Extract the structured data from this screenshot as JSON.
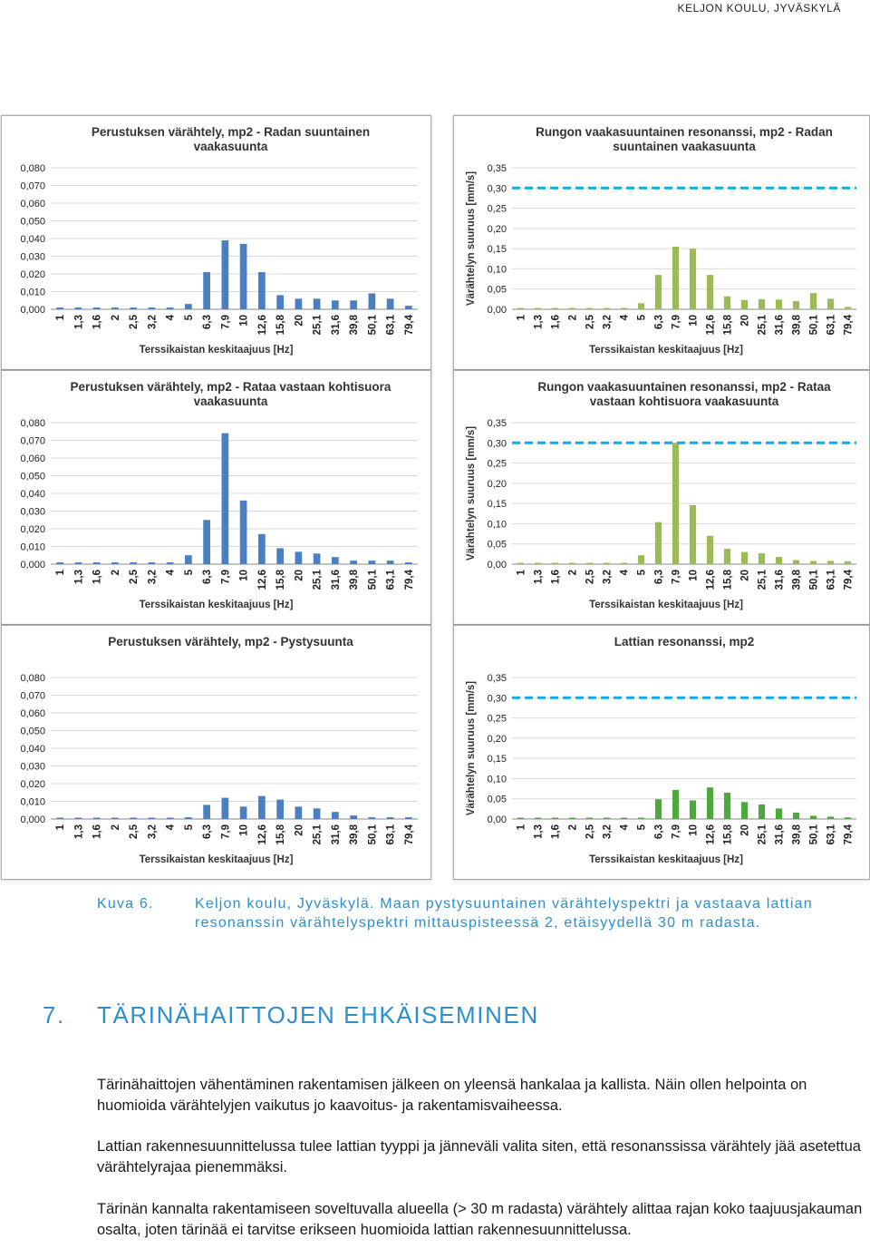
{
  "header": {
    "text": "KELJON KOULU, JYVÄSKYLÄ"
  },
  "charts": [
    {
      "title": [
        "Perustuksen värähtely, mp2 - Radan suuntainen",
        "vaakasuunta"
      ],
      "xlabel": "Terssikaistan keskitaajuus [Hz]",
      "ylabel": "",
      "yticks": [
        "0,080",
        "0,070",
        "0,060",
        "0,050",
        "0,040",
        "0,030",
        "0,020",
        "0,010",
        "0,000"
      ],
      "ymax": 0.08,
      "bar_color": "#4a7fc1",
      "categories": [
        "1",
        "1,3",
        "1,6",
        "2",
        "2,5",
        "3,2",
        "4",
        "5",
        "6,3",
        "7,9",
        "10",
        "12,6",
        "15,8",
        "20",
        "25,1",
        "31,6",
        "39,8",
        "50,1",
        "63,1",
        "79,4"
      ],
      "values": [
        0.001,
        0.001,
        0.001,
        0.001,
        0.001,
        0.001,
        0.001,
        0.003,
        0.021,
        0.039,
        0.037,
        0.021,
        0.008,
        0.006,
        0.006,
        0.005,
        0.005,
        0.009,
        0.006,
        0.002
      ],
      "limit": null
    },
    {
      "title": [
        "Rungon vaakasuuntainen resonanssi, mp2 - Radan",
        "suuntainen vaakasuunta"
      ],
      "xlabel": "Terssikaistan keskitaajuus [Hz]",
      "ylabel": "Värähtelyn suuruus [mm/s]",
      "yticks": [
        "0,35",
        "0,30",
        "0,25",
        "0,20",
        "0,15",
        "0,10",
        "0,05",
        "0,00"
      ],
      "ymax": 0.35,
      "bar_color": "#9bbb59",
      "categories": [
        "1",
        "1,3",
        "1,6",
        "2",
        "2,5",
        "3,2",
        "4",
        "5",
        "6,3",
        "7,9",
        "10",
        "12,6",
        "15,8",
        "20",
        "25,1",
        "31,6",
        "39,8",
        "50,1",
        "63,1",
        "79,4"
      ],
      "values": [
        0.002,
        0.002,
        0.002,
        0.002,
        0.002,
        0.002,
        0.003,
        0.015,
        0.085,
        0.155,
        0.15,
        0.085,
        0.032,
        0.023,
        0.025,
        0.024,
        0.02,
        0.04,
        0.026,
        0.006
      ],
      "limit": 0.3,
      "limit_color": "#00b0f0"
    },
    {
      "title": [
        "Perustuksen värähtely, mp2 - Rataa vastaan kohtisuora",
        "vaakasuunta"
      ],
      "xlabel": "Terssikaistan keskitaajuus [Hz]",
      "ylabel": "",
      "yticks": [
        "0,080",
        "0,070",
        "0,060",
        "0,050",
        "0,040",
        "0,030",
        "0,020",
        "0,010",
        "0,000"
      ],
      "ymax": 0.08,
      "bar_color": "#4a7fc1",
      "categories": [
        "1",
        "1,3",
        "1,6",
        "2",
        "2,5",
        "3,2",
        "4",
        "5",
        "6,3",
        "7,9",
        "10",
        "12,6",
        "15,8",
        "20",
        "25,1",
        "31,6",
        "39,8",
        "50,1",
        "63,1",
        "79,4"
      ],
      "values": [
        0.001,
        0.001,
        0.001,
        0.001,
        0.001,
        0.001,
        0.001,
        0.005,
        0.025,
        0.074,
        0.036,
        0.017,
        0.009,
        0.007,
        0.006,
        0.004,
        0.002,
        0.002,
        0.002,
        0.001
      ],
      "limit": null
    },
    {
      "title": [
        "Rungon vaakasuuntainen resonanssi, mp2 - Rataa",
        "vastaan kohtisuora vaakasuunta"
      ],
      "xlabel": "Terssikaistan keskitaajuus [Hz]",
      "ylabel": "Värähtelyn suuruus [mm/s]",
      "yticks": [
        "0,35",
        "0,30",
        "0,25",
        "0,20",
        "0,15",
        "0,10",
        "0,05",
        "0,00"
      ],
      "ymax": 0.35,
      "bar_color": "#9bbb59",
      "categories": [
        "1",
        "1,3",
        "1,6",
        "2",
        "2,5",
        "3,2",
        "4",
        "5",
        "6,3",
        "7,9",
        "10",
        "12,6",
        "15,8",
        "20",
        "25,1",
        "31,6",
        "39,8",
        "50,1",
        "63,1",
        "79,4"
      ],
      "values": [
        0.002,
        0.002,
        0.002,
        0.002,
        0.002,
        0.002,
        0.002,
        0.022,
        0.104,
        0.3,
        0.146,
        0.07,
        0.038,
        0.03,
        0.027,
        0.018,
        0.01,
        0.008,
        0.008,
        0.007
      ],
      "limit": 0.3,
      "limit_color": "#00b0f0"
    },
    {
      "title": [
        "Perustuksen värähtely, mp2 - Pystysuunta"
      ],
      "xlabel": "Terssikaistan keskitaajuus [Hz]",
      "ylabel": "",
      "yticks": [
        "0,080",
        "0,070",
        "0,060",
        "0,050",
        "0,040",
        "0,030",
        "0,020",
        "0,010",
        "0,000"
      ],
      "ymax": 0.08,
      "bar_color": "#4a7fc1",
      "categories": [
        "1",
        "1,3",
        "1,6",
        "2",
        "2,5",
        "3,2",
        "4",
        "5",
        "6,3",
        "7,9",
        "10",
        "12,6",
        "15,8",
        "20",
        "25,1",
        "31,6",
        "39,8",
        "50,1",
        "63,1",
        "79,4"
      ],
      "values": [
        0.0005,
        0.0005,
        0.0005,
        0.0005,
        0.0005,
        0.0005,
        0.0005,
        0.001,
        0.008,
        0.012,
        0.007,
        0.013,
        0.011,
        0.007,
        0.006,
        0.004,
        0.002,
        0.001,
        0.001,
        0.001
      ],
      "limit": null
    },
    {
      "title": [
        "Lattian resonanssi, mp2"
      ],
      "xlabel": "Terssikaistan keskitaajuus [Hz]",
      "ylabel": "Värähtelyn suuruus [mm/s]",
      "yticks": [
        "0,35",
        "0,30",
        "0,25",
        "0,20",
        "0,15",
        "0,10",
        "0,05",
        "0,00"
      ],
      "ymax": 0.35,
      "bar_color": "#4fa83d",
      "categories": [
        "1",
        "1,3",
        "1,6",
        "2",
        "2,5",
        "3,2",
        "4",
        "5",
        "6,3",
        "7,9",
        "10",
        "12,6",
        "15,8",
        "20",
        "25,1",
        "31,6",
        "39,8",
        "50,1",
        "63,1",
        "79,4"
      ],
      "values": [
        0.001,
        0.002,
        0.001,
        0.001,
        0.001,
        0.001,
        0.001,
        0.002,
        0.049,
        0.072,
        0.046,
        0.078,
        0.065,
        0.042,
        0.036,
        0.026,
        0.016,
        0.008,
        0.006,
        0.004
      ],
      "limit": 0.3,
      "limit_color": "#00b0f0"
    }
  ],
  "caption": {
    "number": "Kuva 6.",
    "text": "Keljon koulu, Jyväskylä. Maan pystysuuntainen värähtelyspektri ja vastaava lattian resonanssin värähtelyspektri mittauspisteessä 2, etäisyydellä 30 m radasta."
  },
  "section": {
    "number": "7.",
    "title": "TÄRINÄHAITTOJEN EHKÄISEMINEN"
  },
  "paragraphs": [
    "Tärinähaittojen vähentäminen rakentamisen jälkeen on yleensä hankalaa ja kallista. Näin ollen helpointa on huomioida värähtelyjen vaikutus jo kaavoitus- ja rakentamisvaiheessa.",
    "Lattian rakennesuunnittelussa tulee lattian tyyppi ja jänneväli valita siten, että resonanssissa värähtely jää asetettua värähtelyrajaa pienemmäksi.",
    "Tärinän kannalta rakentamiseen soveltuvalla alueella (> 30 m radasta) värähtely alittaa rajan koko taajuusjakauman osalta, joten tärinää ei tarvitse erikseen huomioida lattian rakennesuunnittelussa."
  ]
}
